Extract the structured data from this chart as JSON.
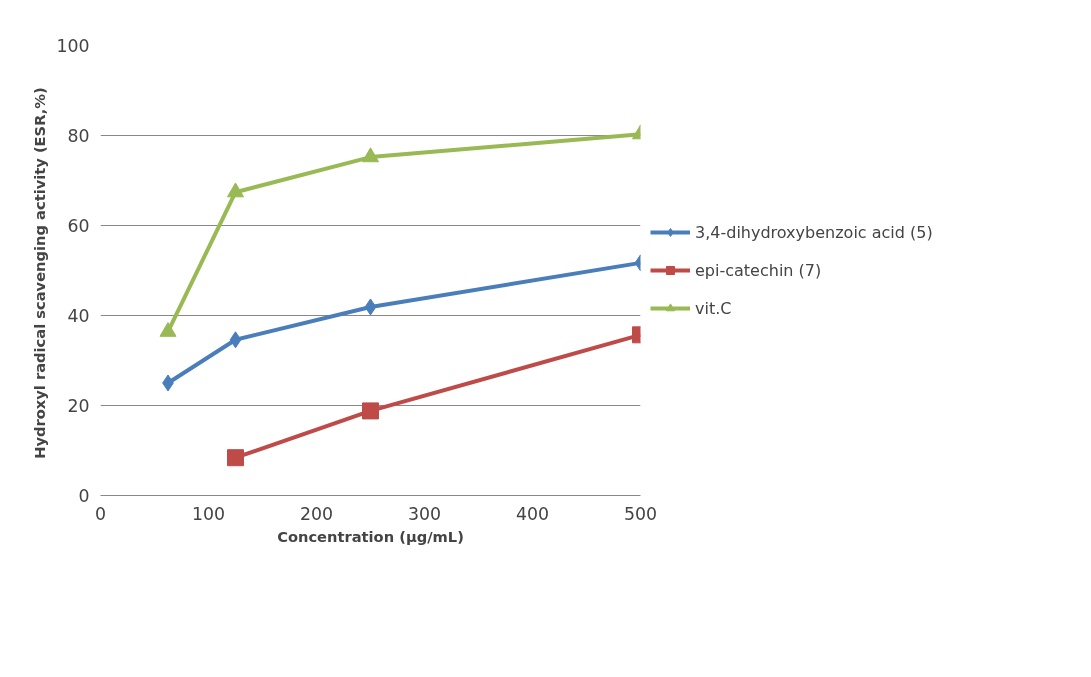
{
  "chart_data": {
    "type": "line",
    "xlabel": "Concentration (μg/mL)",
    "ylabel": "Hydroxyl radical scavenging activity  (ESR,%)",
    "x": [
      62.5,
      125,
      250,
      500
    ],
    "series": [
      {
        "name": "3,4-dihydroxybenzoic acid (5)",
        "color": "#4a7ebb",
        "marker": "diamond",
        "values": [
          25,
          34.6,
          41.9,
          51.7
        ]
      },
      {
        "name": "epi-catechin (7)",
        "color": "#be4b48",
        "marker": "square",
        "x": [
          125,
          250,
          500
        ],
        "values": [
          8.4,
          18.8,
          35.7
        ]
      },
      {
        "name": "vit.C",
        "color": "#98b954",
        "marker": "triangle",
        "values": [
          36.4,
          67.4,
          75.2,
          80.3
        ]
      }
    ],
    "xlim": [
      0,
      500
    ],
    "ylim": [
      0,
      100
    ],
    "xticks": [
      0,
      100,
      200,
      300,
      400,
      500
    ],
    "yticks": [
      0,
      20,
      40,
      60,
      80,
      100
    ],
    "grid": "y",
    "legend": "right"
  }
}
